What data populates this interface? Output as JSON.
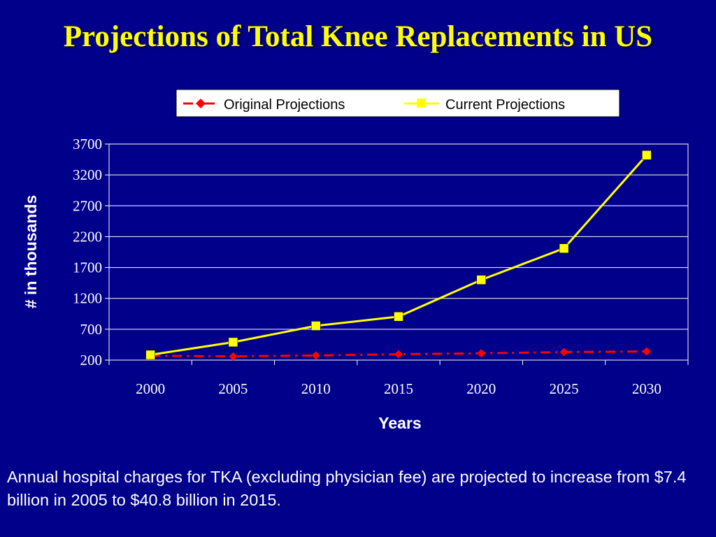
{
  "slide": {
    "title": "Projections of Total Knee Replacements in US",
    "caption": "Annual hospital charges for TKA (excluding physician fee) are projected to increase from $7.4 billion in 2005 to $40.8 billion in 2015."
  },
  "colors": {
    "background": "#00008b",
    "title": "#ffff00",
    "original": "#ff0000",
    "current": "#ffff00"
  },
  "chart_data": {
    "type": "line",
    "title": "",
    "xlabel": "Years",
    "ylabel": "# in thousands",
    "categories": [
      "2000",
      "2005",
      "2010",
      "2015",
      "2020",
      "2025",
      "2030"
    ],
    "ylim": [
      200,
      3700
    ],
    "yticks": [
      200,
      700,
      1200,
      1700,
      2200,
      2700,
      3200,
      3700
    ],
    "grid": true,
    "legend_position": "top",
    "series": [
      {
        "name": "Original Projections",
        "style": "dashed",
        "marker": "diamond",
        "values": [
          270,
          260,
          275,
          295,
          310,
          330,
          340
        ]
      },
      {
        "name": "Current Projections",
        "style": "solid",
        "marker": "square",
        "values": [
          285,
          490,
          755,
          905,
          1500,
          2010,
          3520
        ]
      }
    ]
  }
}
